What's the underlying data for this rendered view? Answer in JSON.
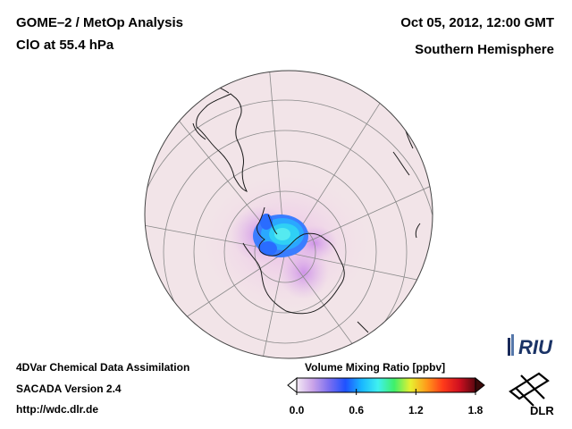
{
  "header": {
    "title_line1": "GOME–2 / MetOp Analysis",
    "title_line2": "ClO at 55.4 hPa",
    "date": "Oct 05, 2012, 12:00 GMT",
    "region": "Southern Hemisphere"
  },
  "footer": {
    "line1": "4DVar Chemical Data Assimilation",
    "line2": "SACADA Version 2.4",
    "line3": "http://wdc.dlr.de"
  },
  "colorbar": {
    "title": "Volume Mixing Ratio [ppbv]",
    "ticks": [
      {
        "value": 0.0,
        "label": "0.0"
      },
      {
        "value": 0.6,
        "label": "0.6"
      },
      {
        "value": 1.2,
        "label": "1.2"
      },
      {
        "value": 1.8,
        "label": "1.8"
      }
    ],
    "range": [
      0.0,
      1.8
    ],
    "stops": [
      "#f3e9f5",
      "#c9a3e8",
      "#7a6ef0",
      "#1e52ff",
      "#19b8ff",
      "#3ff0f0",
      "#3ff06a",
      "#e8f030",
      "#ff9a1a",
      "#ff3a1a",
      "#d01020",
      "#5a0810"
    ]
  },
  "logos": {
    "riu": "RIU",
    "dlr": "DLR"
  },
  "map": {
    "projection": "orthographic",
    "hemisphere": "south",
    "background_color": "#f2e4e8",
    "ocean_color": "#f5ecee"
  }
}
